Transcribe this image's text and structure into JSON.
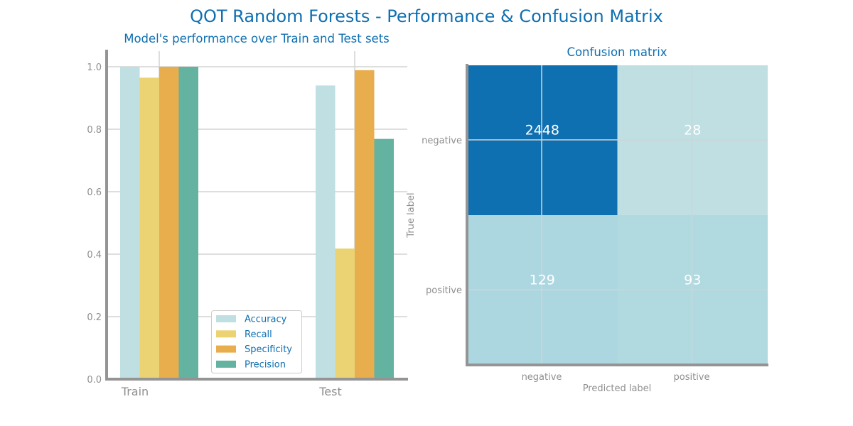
{
  "title": "QOT Random Forests - Performance & Confusion Matrix",
  "colors": {
    "title": "#0e6fb1",
    "axis": "#949494",
    "grid": "#d3d3d3",
    "tick_text": "#8f8f8f",
    "cell_text": "#ffffff",
    "accuracy": "#bfdfe2",
    "recall": "#ebd374",
    "specificity": "#e8ad4c",
    "precision": "#63b3a0",
    "cm_high": "#0e6fb1",
    "cm_low": "#add7e0"
  },
  "chart_data": [
    {
      "type": "bar",
      "title": "Model's performance over Train and Test sets",
      "categories": [
        "Train",
        "Test"
      ],
      "series": [
        {
          "name": "Accuracy",
          "values": [
            1.0,
            0.94
          ]
        },
        {
          "name": "Recall",
          "values": [
            0.965,
            0.418
          ]
        },
        {
          "name": "Specificity",
          "values": [
            1.0,
            0.989
          ]
        },
        {
          "name": "Precision",
          "values": [
            1.0,
            0.769
          ]
        }
      ],
      "ylim": [
        0,
        1.0
      ],
      "yticks": [
        "0.0",
        "0.2",
        "0.4",
        "0.6",
        "0.8",
        "1.0"
      ],
      "grid": true,
      "legend": "bottom-right"
    },
    {
      "type": "heatmap",
      "title": "Confusion matrix",
      "xlabel": "Predicted label",
      "ylabel": "True label",
      "x_categories": [
        "negative",
        "positive"
      ],
      "y_categories": [
        "negative",
        "positive"
      ],
      "values": [
        [
          2448,
          28
        ],
        [
          129,
          93
        ]
      ],
      "grid": true
    }
  ]
}
